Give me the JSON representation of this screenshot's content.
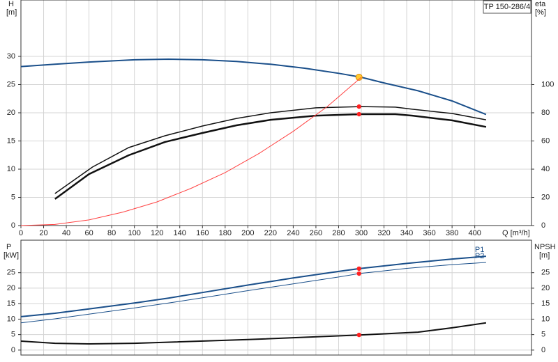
{
  "chart_data": [
    {
      "type": "line",
      "title": "TP 150-286/4",
      "xlabel": "Q [m³/h]",
      "ylabel": "H",
      "yunit": "[m]",
      "y2label": "eta",
      "y2unit": "[%]",
      "xlim": [
        0,
        450
      ],
      "xticks": [
        0,
        20,
        40,
        60,
        80,
        100,
        120,
        140,
        160,
        180,
        200,
        220,
        240,
        260,
        280,
        300,
        320,
        340,
        360,
        380,
        400
      ],
      "ylim": [
        0,
        40
      ],
      "yticks": [
        0,
        5,
        10,
        15,
        20,
        25,
        30
      ],
      "y2lim": [
        0,
        160
      ],
      "y2ticks": [
        0,
        20,
        40,
        60,
        80,
        100
      ],
      "grid": true,
      "series": [
        {
          "color": "#1a4f8a",
          "width": 2,
          "x": [
            0,
            30,
            60,
            100,
            130,
            160,
            190,
            220,
            250,
            280,
            300,
            320,
            350,
            380,
            410
          ],
          "values": [
            28.2,
            28.6,
            29.0,
            29.4,
            29.5,
            29.4,
            29.1,
            28.6,
            27.9,
            27.0,
            26.3,
            25.3,
            23.9,
            22.1,
            19.7
          ],
          "marker": {
            "x": 298,
            "y": 26.3,
            "color": "#ffcc33"
          }
        },
        {
          "color": "#111111",
          "width": 1.5,
          "axis": "y2",
          "x": [
            30,
            63,
            95,
            127,
            160,
            190,
            220,
            260,
            300,
            330,
            345,
            380,
            410
          ],
          "values": [
            22.7,
            41.5,
            55.3,
            63.7,
            70.6,
            76,
            80,
            83.5,
            84.4,
            84,
            82.5,
            79.5,
            75
          ],
          "marker": {
            "x": 298,
            "y": 84.4,
            "color": "#ff2020"
          }
        },
        {
          "color": "#111111",
          "width": 2.5,
          "axis": "y2",
          "x": [
            30,
            60,
            95,
            127,
            160,
            190,
            220,
            260,
            300,
            330,
            345,
            380,
            410
          ],
          "values": [
            18.8,
            36.5,
            49.9,
            59.3,
            65.7,
            71.1,
            75,
            78,
            79,
            79,
            78,
            74.6,
            70
          ],
          "marker": {
            "x": 298,
            "y": 79,
            "color": "#ff2020"
          }
        },
        {
          "color": "#ff4040",
          "width": 1,
          "x": [
            0,
            30,
            60,
            90,
            120,
            150,
            180,
            210,
            240,
            270,
            300
          ],
          "values": [
            0,
            0.2,
            1.0,
            2.4,
            4.2,
            6.6,
            9.4,
            12.8,
            16.7,
            21.1,
            26.3
          ]
        }
      ]
    },
    {
      "type": "line",
      "ylabel": "P",
      "yunit": "[kW]",
      "y2label": "NPSH",
      "y2unit": "[m]",
      "xlim": [
        0,
        450
      ],
      "ylim": [
        -1.6,
        35.5
      ],
      "yticks": [
        0,
        5,
        10,
        15,
        20,
        25
      ],
      "y2lim": [
        -1.6,
        35.5
      ],
      "y2ticks": [
        0,
        5,
        10,
        15,
        20,
        25
      ],
      "grid": true,
      "series": [
        {
          "name": "P1",
          "color": "#1a4f8a",
          "width": 2,
          "x": [
            0,
            30,
            60,
            100,
            130,
            160,
            200,
            240,
            280,
            298,
            340,
            380,
            410
          ],
          "values": [
            10.8,
            11.9,
            13.3,
            15.2,
            16.8,
            18.6,
            21.0,
            23.3,
            25.4,
            26.3,
            28.0,
            29.4,
            30.3
          ],
          "marker": {
            "x": 298,
            "y": 26.3,
            "color": "#ff2020"
          }
        },
        {
          "name": "P2",
          "color": "#1a4f8a",
          "width": 1,
          "x": [
            0,
            30,
            60,
            100,
            130,
            160,
            200,
            240,
            280,
            298,
            340,
            380,
            410
          ],
          "values": [
            8.8,
            10.1,
            11.6,
            13.6,
            15.2,
            16.9,
            19.2,
            21.4,
            23.6,
            24.7,
            26.4,
            27.6,
            28.3
          ],
          "marker": {
            "x": 298,
            "y": 24.7,
            "color": "#ff2020"
          }
        },
        {
          "color": "#111111",
          "width": 2,
          "axis": "y2",
          "x": [
            0,
            30,
            60,
            100,
            200,
            300,
            350,
            380,
            410
          ],
          "values": [
            2.9,
            2.2,
            2.0,
            2.2,
            3.4,
            4.9,
            5.8,
            7.2,
            8.8
          ],
          "marker": {
            "x": 298,
            "y": 4.9,
            "color": "#ff2020"
          }
        }
      ]
    }
  ]
}
